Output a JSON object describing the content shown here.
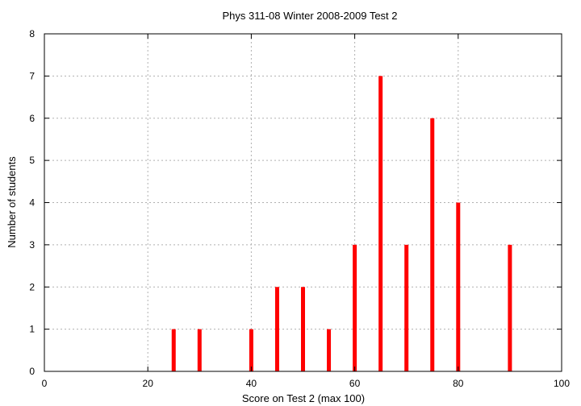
{
  "chart_data": {
    "type": "bar",
    "title": "Phys 311-08 Winter 2008-2009 Test 2",
    "xlabel": "Score on Test 2 (max 100)",
    "ylabel": "Number of students",
    "xlim": [
      0,
      100
    ],
    "ylim": [
      0,
      8
    ],
    "xticks": [
      0,
      20,
      40,
      60,
      80,
      100
    ],
    "yticks": [
      0,
      1,
      2,
      3,
      4,
      5,
      6,
      7,
      8
    ],
    "grid": true,
    "bar_color": "#ff0000",
    "x": [
      25,
      30,
      40,
      45,
      50,
      55,
      60,
      65,
      70,
      75,
      80,
      90
    ],
    "values": [
      1,
      1,
      1,
      2,
      2,
      1,
      3,
      7,
      3,
      6,
      4,
      3
    ]
  }
}
